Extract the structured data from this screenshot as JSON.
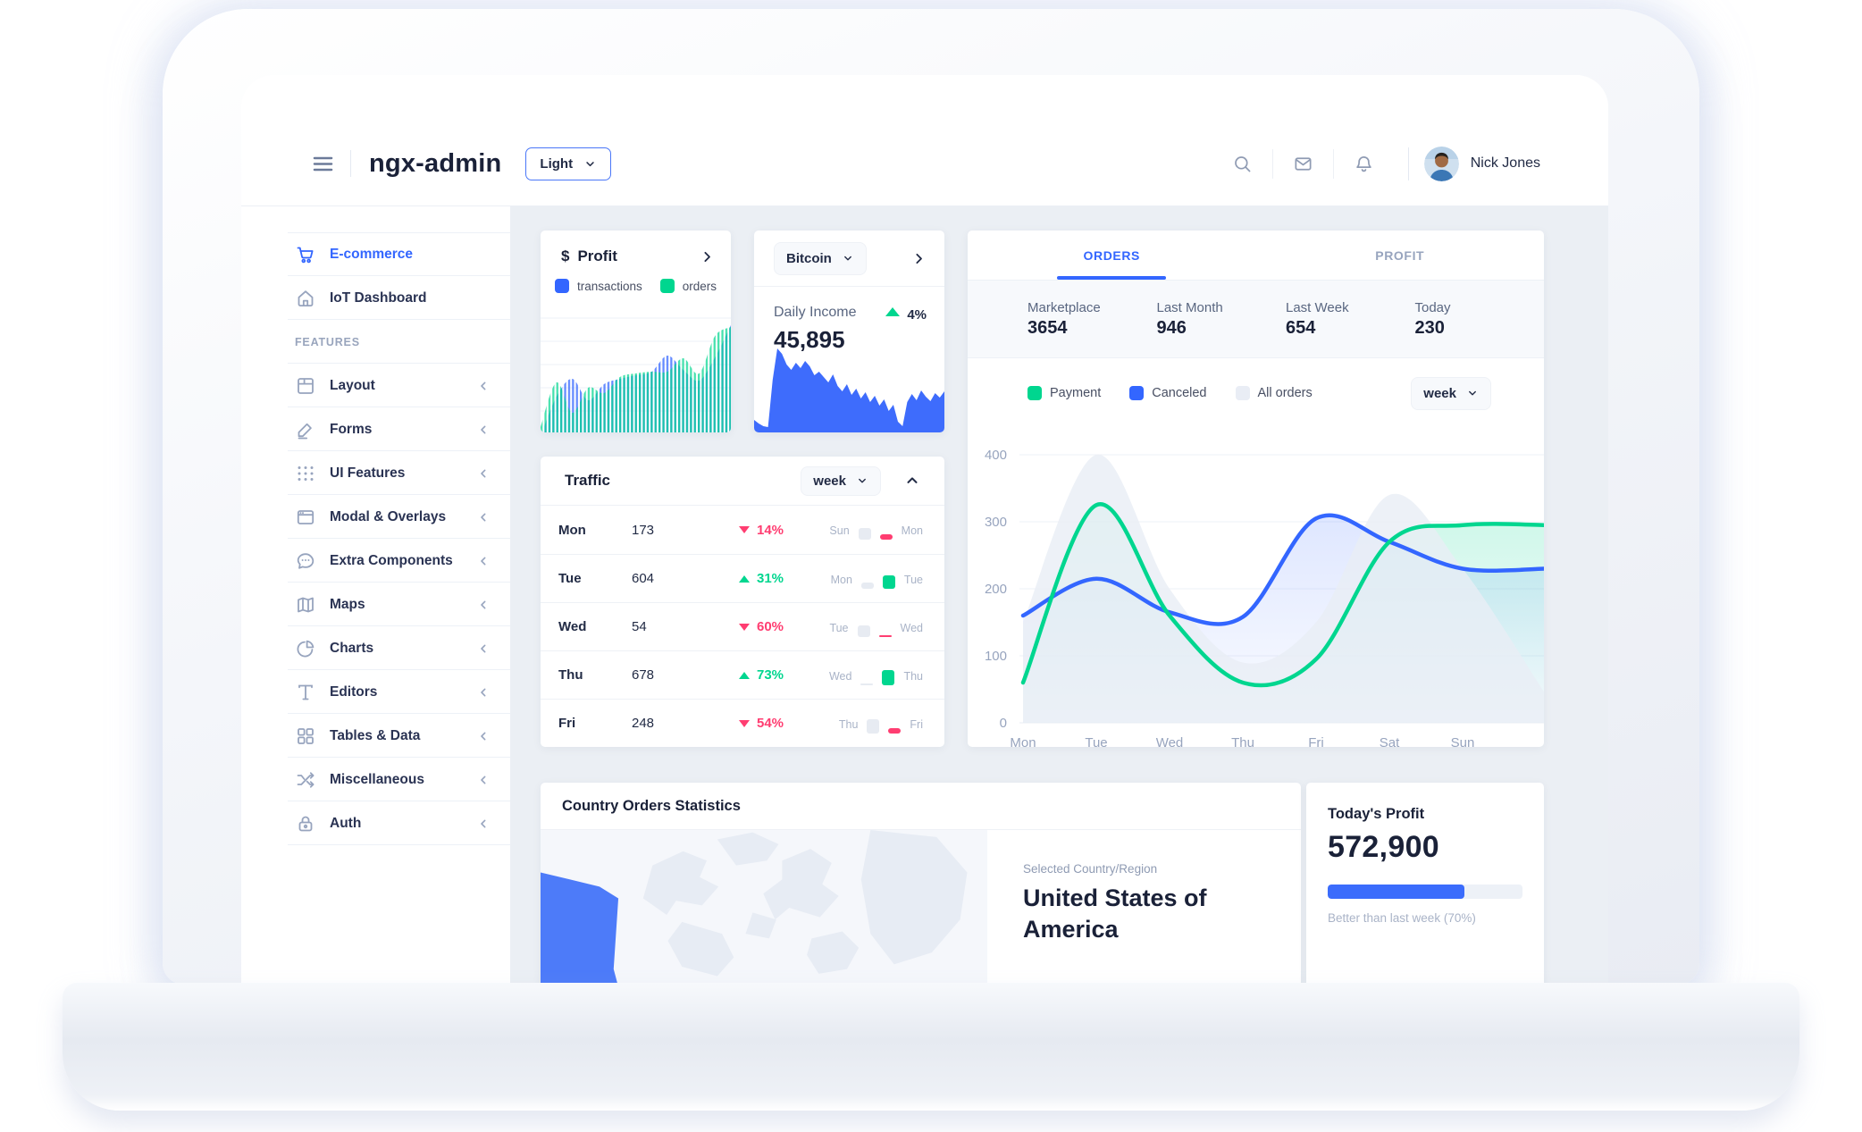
{
  "theme": {
    "accent": "#3366ff",
    "success": "#00d68f",
    "danger": "#ff3d71",
    "muted_bar": "#e7ebf2",
    "all_orders_fill": "#e9edf5"
  },
  "header": {
    "app_title": "ngx-admin",
    "theme_select": {
      "value": "Light"
    },
    "action_icons": [
      "search",
      "email",
      "bell"
    ],
    "user": {
      "name": "Nick Jones"
    }
  },
  "sidebar": {
    "items": [
      {
        "label": "E-commerce",
        "icon": "cart",
        "active": true
      },
      {
        "label": "IoT Dashboard",
        "icon": "home"
      },
      {
        "type": "section",
        "label": "FEATURES"
      },
      {
        "label": "Layout",
        "icon": "layout",
        "collapsible": true
      },
      {
        "label": "Forms",
        "icon": "edit",
        "collapsible": true
      },
      {
        "label": "UI Features",
        "icon": "keypad",
        "collapsible": true
      },
      {
        "label": "Modal & Overlays",
        "icon": "window",
        "collapsible": true
      },
      {
        "label": "Extra Components",
        "icon": "chat",
        "collapsible": true
      },
      {
        "label": "Maps",
        "icon": "map",
        "collapsible": true
      },
      {
        "label": "Charts",
        "icon": "pie",
        "collapsible": true
      },
      {
        "label": "Editors",
        "icon": "text",
        "collapsible": true
      },
      {
        "label": "Tables & Data",
        "icon": "grid",
        "collapsible": true
      },
      {
        "label": "Miscellaneous",
        "icon": "shuffle",
        "collapsible": true
      },
      {
        "label": "Auth",
        "icon": "lock",
        "collapsible": true
      }
    ]
  },
  "profit_card": {
    "currency_icon": "$",
    "title": "Profit",
    "legend": [
      {
        "label": "transactions",
        "color": "#3366ff"
      },
      {
        "label": "orders",
        "color": "#00d68f"
      }
    ],
    "chart_data": {
      "type": "area",
      "style": "hatched",
      "series": [
        {
          "name": "transactions",
          "color": "#3366ff",
          "values": [
            -32,
            12,
            32,
            8,
            26,
            32,
            36,
            40,
            58,
            42,
            30,
            56,
            92
          ]
        },
        {
          "name": "orders",
          "color": "#00d68f",
          "values": [
            -22,
            28,
            -6,
            22,
            16,
            34,
            38,
            40,
            40,
            55,
            38,
            80,
            90
          ]
        }
      ]
    }
  },
  "bitcoin_card": {
    "selector": {
      "value": "Bitcoin"
    },
    "stat_label": "Daily Income",
    "value": "45,895",
    "delta": {
      "value": "4%",
      "direction": "up"
    },
    "chart_data": {
      "type": "area",
      "color": "#3e6cfc",
      "values": [
        10,
        6,
        3,
        2,
        55,
        90,
        84,
        72,
        66,
        74,
        68,
        76,
        70,
        60,
        64,
        58,
        52,
        61,
        48,
        42,
        50,
        38,
        45,
        34,
        41,
        30,
        37,
        26,
        33,
        20,
        27,
        8,
        3,
        30,
        39,
        32,
        43,
        36,
        31,
        40,
        35,
        42
      ]
    }
  },
  "orders_card": {
    "tabs": [
      {
        "label": "ORDERS",
        "active": true
      },
      {
        "label": "PROFIT",
        "active": false
      }
    ],
    "stats": [
      {
        "label": "Marketplace",
        "value": "3654"
      },
      {
        "label": "Last Month",
        "value": "946"
      },
      {
        "label": "Last Week",
        "value": "654"
      },
      {
        "label": "Today",
        "value": "230"
      }
    ],
    "legend": [
      {
        "label": "Payment",
        "color": "#00d68f"
      },
      {
        "label": "Canceled",
        "color": "#3366ff"
      },
      {
        "label": "All orders",
        "color": "#e9edf5"
      }
    ],
    "period_select": {
      "value": "week"
    },
    "chart_data": {
      "type": "line",
      "x": [
        "Mon",
        "Tue",
        "Wed",
        "Thu",
        "Fri",
        "Sat",
        "Sun"
      ],
      "y_ticks": [
        0,
        100,
        200,
        300,
        400
      ],
      "ylim": [
        0,
        400
      ],
      "grid": true,
      "series": [
        {
          "name": "All orders",
          "kind": "area",
          "color": "#e9edf5",
          "values": [
            150,
            400,
            200,
            90,
            150,
            340,
            230
          ],
          "edge_value": 40
        },
        {
          "name": "Canceled",
          "kind": "line",
          "color": "#3366ff",
          "values": [
            160,
            215,
            165,
            158,
            305,
            270,
            230
          ],
          "edge_value": 230
        },
        {
          "name": "Payment",
          "kind": "line",
          "color": "#00d68f",
          "values": [
            60,
            325,
            160,
            60,
            95,
            270,
            295
          ],
          "edge_value": 295
        }
      ]
    }
  },
  "traffic_card": {
    "title": "Traffic",
    "period_select": {
      "value": "week"
    },
    "rows": [
      {
        "day": "Mon",
        "value": "173",
        "delta": "14%",
        "direction": "down",
        "compare": {
          "prev_label": "Sun",
          "cur_label": "Mon",
          "prev_h": 13,
          "cur_h": 6
        }
      },
      {
        "day": "Tue",
        "value": "604",
        "delta": "31%",
        "direction": "up",
        "compare": {
          "prev_label": "Mon",
          "cur_label": "Tue",
          "prev_h": 7,
          "cur_h": 15
        }
      },
      {
        "day": "Wed",
        "value": "54",
        "delta": "60%",
        "direction": "down",
        "compare": {
          "prev_label": "Tue",
          "cur_label": "Wed",
          "prev_h": 13,
          "cur_h": 2
        }
      },
      {
        "day": "Thu",
        "value": "678",
        "delta": "73%",
        "direction": "up",
        "compare": {
          "prev_label": "Wed",
          "cur_label": "Thu",
          "prev_h": 2,
          "cur_h": 17
        }
      },
      {
        "day": "Fri",
        "value": "248",
        "delta": "54%",
        "direction": "down",
        "compare": {
          "prev_label": "Thu",
          "cur_label": "Fri",
          "prev_h": 16,
          "cur_h": 6
        }
      }
    ]
  },
  "country_card": {
    "title": "Country Orders Statistics",
    "selected_label": "Selected Country/Region",
    "selected_value": "United States of America",
    "map_highlight_color": "#4d7bf9"
  },
  "today_profit_card": {
    "title": "Today's Profit",
    "value": "572,900",
    "progress_percent": 70,
    "caption": "Better than last week (70%)"
  }
}
